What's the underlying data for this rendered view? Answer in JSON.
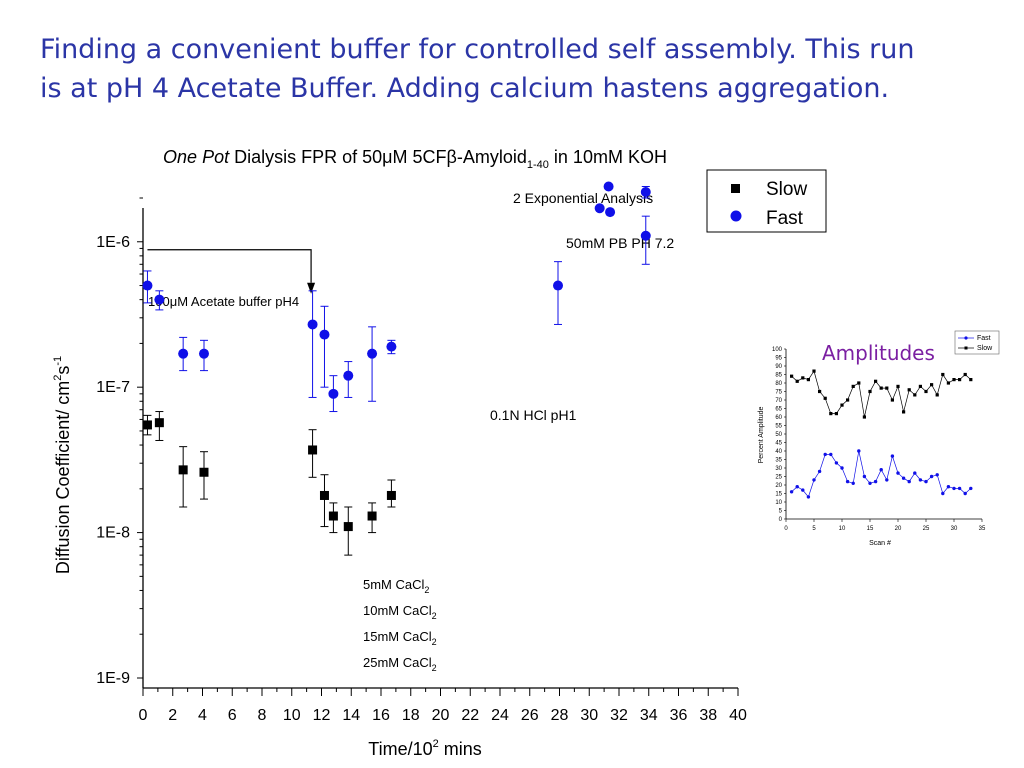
{
  "slide": {
    "title_line1": "Finding a convenient buffer for controlled self assembly.  This run",
    "title_line2": "is at pH 4 Acetate Buffer.  Adding calcium hastens aggregation."
  },
  "colors": {
    "title": "#2b35a6",
    "fast": "#1010e8",
    "slow": "#000000",
    "amplitudes_title": "#7b1fa2"
  },
  "chart_data": [
    {
      "type": "scatter",
      "title": {
        "italic": "One Pot",
        "pre": " Dialysis FPR of 50",
        "mu": "μ",
        "mid": "M 5CF",
        "beta": "β",
        "post": "-Amyloid",
        "sub": "1-40",
        "tail": " in 10mM KOH"
      },
      "xlabel": {
        "text": "Time/10",
        "sup": "2",
        "tail": " mins"
      },
      "ylabel": {
        "text": "Diffusion Coefficient/ cm",
        "sup1": "2",
        "mid": "s",
        "sup2": "-1"
      },
      "xlim": [
        0,
        40
      ],
      "x_ticks": [
        0,
        2,
        4,
        6,
        8,
        10,
        12,
        14,
        16,
        18,
        20,
        22,
        24,
        26,
        28,
        30,
        32,
        34,
        36,
        38,
        40
      ],
      "y_scale": "log",
      "ylim": [
        1e-09,
        2e-06
      ],
      "y_ticks": [
        {
          "value": 1e-06,
          "label": "1E-6"
        },
        {
          "value": 1e-07,
          "label": "1E-7"
        },
        {
          "value": 1e-08,
          "label": "1E-8"
        },
        {
          "value": 1e-09,
          "label": "1E-9"
        }
      ],
      "legend": {
        "position": "top-right",
        "entries": [
          "Slow",
          "Fast"
        ]
      },
      "series": [
        {
          "name": "Slow",
          "marker": "square",
          "points": [
            {
              "x": 0.3,
              "y": 5.5e-08,
              "lo": 4.7e-08,
              "hi": 6.4e-08
            },
            {
              "x": 1.1,
              "y": 5.7e-08,
              "lo": 4.3e-08,
              "hi": 6.8e-08
            },
            {
              "x": 2.7,
              "y": 2.7e-08,
              "lo": 1.5e-08,
              "hi": 3.9e-08
            },
            {
              "x": 4.1,
              "y": 2.6e-08,
              "lo": 1.7e-08,
              "hi": 3.6e-08
            },
            {
              "x": 11.4,
              "y": 3.7e-08,
              "lo": 2.4e-08,
              "hi": 5.1e-08
            },
            {
              "x": 12.2,
              "y": 1.8e-08,
              "lo": 1.1e-08,
              "hi": 2.5e-08
            },
            {
              "x": 12.8,
              "y": 1.3e-08,
              "lo": 1e-08,
              "hi": 1.6e-08
            },
            {
              "x": 13.8,
              "y": 1.1e-08,
              "lo": 7e-09,
              "hi": 1.5e-08
            },
            {
              "x": 15.4,
              "y": 1.3e-08,
              "lo": 1e-08,
              "hi": 1.6e-08
            },
            {
              "x": 16.7,
              "y": 1.8e-08,
              "lo": 1.5e-08,
              "hi": 2.3e-08
            }
          ]
        },
        {
          "name": "Fast",
          "marker": "circle",
          "points": [
            {
              "x": 0.3,
              "y": 5e-07,
              "lo": 3.8e-07,
              "hi": 6.3e-07
            },
            {
              "x": 1.1,
              "y": 4e-07,
              "lo": 3.4e-07,
              "hi": 4.6e-07
            },
            {
              "x": 2.7,
              "y": 1.7e-07,
              "lo": 1.3e-07,
              "hi": 2.2e-07
            },
            {
              "x": 4.1,
              "y": 1.7e-07,
              "lo": 1.3e-07,
              "hi": 2.1e-07
            },
            {
              "x": 11.4,
              "y": 2.7e-07,
              "lo": 8.5e-08,
              "hi": 4.6e-07
            },
            {
              "x": 12.2,
              "y": 2.3e-07,
              "lo": 1e-07,
              "hi": 3.6e-07
            },
            {
              "x": 12.8,
              "y": 9e-08,
              "lo": 6.8e-08,
              "hi": 1.2e-07
            },
            {
              "x": 13.8,
              "y": 1.2e-07,
              "lo": 8.5e-08,
              "hi": 1.5e-07
            },
            {
              "x": 15.4,
              "y": 1.7e-07,
              "lo": 8e-08,
              "hi": 2.6e-07
            },
            {
              "x": 16.7,
              "y": 1.9e-07,
              "lo": 1.7e-07,
              "hi": 2.1e-07
            },
            {
              "x": 27.9,
              "y": 5e-07,
              "lo": 2.7e-07,
              "hi": 7.3e-07
            },
            {
              "x": 30.7,
              "y": 1.7e-06,
              "lo": null,
              "hi": null
            },
            {
              "x": 31.3,
              "y": 2.4e-06,
              "lo": null,
              "hi": null
            },
            {
              "x": 31.4,
              "y": 1.6e-06,
              "lo": null,
              "hi": null
            },
            {
              "x": 33.8,
              "y": 1.1e-06,
              "lo": 7e-07,
              "hi": 1.5e-06
            },
            {
              "x": 33.8,
              "y": 2.2e-06,
              "lo": 2e-06,
              "hi": 2.4e-06
            }
          ]
        }
      ],
      "annotations": {
        "acetate": {
          "pre": "100",
          "mu": "μ",
          "post": "M Acetate buffer pH4",
          "arrow_from_x": 0.3,
          "arrow_to_x": 11.3,
          "arrow_y": 1e-06
        },
        "two_exp": "2 Exponential Analysis",
        "pb": "50mM PB PH 7.2",
        "hcl": "0.1N HCl pH1",
        "cacl2": [
          {
            "text": "5mM  CaCl",
            "sub": "2"
          },
          {
            "text": "10mM CaCl",
            "sub": "2"
          },
          {
            "text": "15mM CaCl",
            "sub": "2"
          },
          {
            "text": "25mM CaCl",
            "sub": "2"
          }
        ]
      }
    },
    {
      "type": "line",
      "title": "Amplitudes",
      "xlabel": "Scan #",
      "ylabel": "Percent Amplitude",
      "xlim": [
        0,
        35
      ],
      "ylim": [
        0,
        100
      ],
      "x_ticks": [
        0,
        5,
        10,
        15,
        20,
        25,
        30,
        35
      ],
      "y_ticks": [
        0,
        5,
        10,
        15,
        20,
        25,
        30,
        35,
        40,
        45,
        50,
        55,
        60,
        65,
        70,
        75,
        80,
        85,
        90,
        95,
        100
      ],
      "legend": {
        "position": "top-right",
        "entries": [
          "Fast",
          "Slow"
        ]
      },
      "x": [
        1,
        2,
        3,
        4,
        5,
        6,
        7,
        8,
        9,
        10,
        11,
        12,
        13,
        14,
        15,
        16,
        17,
        18,
        19,
        20,
        21,
        22,
        23,
        24,
        25,
        26,
        27,
        28,
        29,
        30,
        31,
        32,
        33
      ],
      "series": [
        {
          "name": "Fast",
          "values": [
            16,
            19,
            17,
            13,
            23,
            28,
            38,
            38,
            33,
            30,
            22,
            21,
            40,
            25,
            21,
            22,
            29,
            23,
            37,
            27,
            24,
            22,
            27,
            23,
            22,
            25,
            26,
            15,
            19,
            18,
            18,
            15,
            18
          ]
        },
        {
          "name": "Slow",
          "values": [
            84,
            81,
            83,
            82,
            87,
            75,
            71,
            62,
            62,
            67,
            70,
            78,
            80,
            60,
            75,
            81,
            77,
            77,
            70,
            78,
            63,
            76,
            73,
            78,
            75,
            79,
            73,
            85,
            80,
            82,
            82,
            85,
            82
          ]
        }
      ]
    }
  ]
}
